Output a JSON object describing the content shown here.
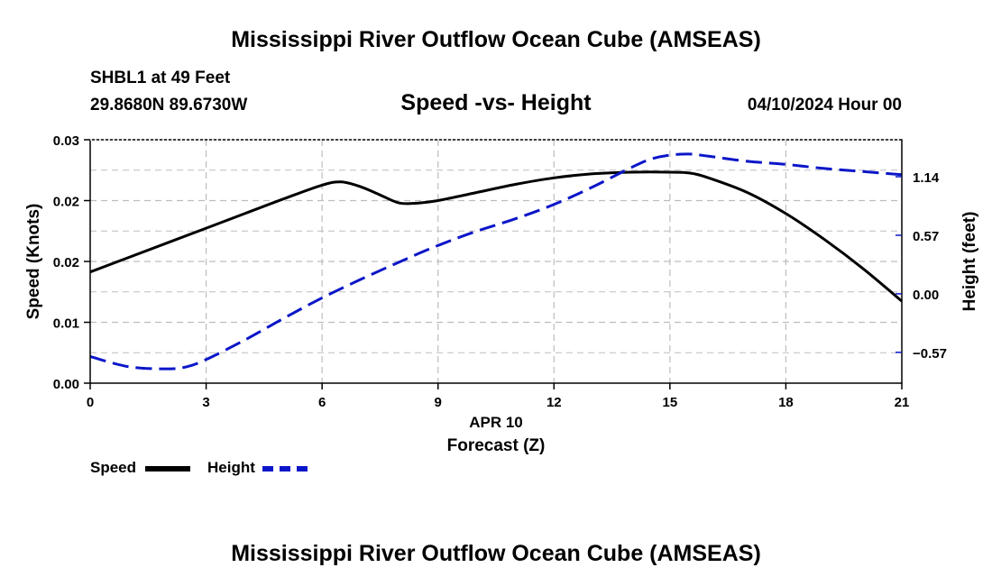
{
  "header": {
    "title": "Mississippi River Outflow Ocean Cube (AMSEAS)",
    "station": "SHBL1 at 49 Feet",
    "coordinates": "29.8680N  89.6730W",
    "subtitle": "Speed -vs- Height",
    "date_hour": "04/10/2024 Hour 00"
  },
  "footer": {
    "title": "Mississippi River Outflow Ocean Cube (AMSEAS)"
  },
  "legend": {
    "speed_label": "Speed",
    "height_label": "Height"
  },
  "colors": {
    "speed": "#000000",
    "height": "#0b16c8",
    "grid": "#bdbdbd"
  },
  "chart_data": {
    "type": "line",
    "title": "Speed -vs- Height",
    "xlabel": "Forecast (Z)",
    "xlabel_date": "APR 10",
    "ylabel": "Speed (Knots)",
    "y2label": "Height (feet)",
    "xlim": [
      0,
      21
    ],
    "ylim": [
      0,
      0.03
    ],
    "y2lim": [
      -0.87,
      1.5
    ],
    "x_ticks": [
      0,
      3,
      6,
      9,
      12,
      15,
      18,
      21
    ],
    "x_tick_labels": [
      "0",
      "3",
      "6",
      "9",
      "12",
      "15",
      "18",
      "21"
    ],
    "y_ticks": [
      0,
      0.0075,
      0.015,
      0.0225,
      0.03
    ],
    "y_tick_labels": [
      "0.00",
      "0.01",
      "0.02",
      "0.02",
      "0.03"
    ],
    "y2_ticks": [
      -0.57,
      0,
      0.57,
      1.14
    ],
    "y2_tick_labels": [
      "−0.57",
      "0.00",
      "0.57",
      "1.14"
    ],
    "grid": true,
    "series": [
      {
        "name": "Speed",
        "axis": "left",
        "style": "solid",
        "x": [
          0,
          1,
          2,
          3,
          4,
          5,
          6,
          6.5,
          7,
          7.5,
          8,
          8.5,
          9,
          10,
          11,
          12,
          13,
          14,
          15,
          15.5,
          16,
          17,
          18,
          19,
          20,
          21
        ],
        "values": [
          0.0137,
          0.0155,
          0.0173,
          0.0191,
          0.0209,
          0.0227,
          0.0244,
          0.0248,
          0.0242,
          0.0232,
          0.0222,
          0.0222,
          0.0225,
          0.0235,
          0.0245,
          0.0253,
          0.0258,
          0.026,
          0.026,
          0.0259,
          0.0253,
          0.0235,
          0.0209,
          0.0177,
          0.0141,
          0.0101
        ]
      },
      {
        "name": "Height",
        "axis": "right",
        "style": "dashed",
        "x": [
          0,
          1,
          2,
          2.5,
          3,
          4,
          5,
          6,
          7,
          8,
          9,
          10,
          11,
          12,
          13,
          14,
          14.5,
          15,
          15.5,
          16,
          17,
          18,
          19,
          20,
          21
        ],
        "values": [
          -0.61,
          -0.71,
          -0.73,
          -0.71,
          -0.64,
          -0.45,
          -0.24,
          -0.04,
          0.14,
          0.31,
          0.47,
          0.61,
          0.73,
          0.87,
          1.04,
          1.23,
          1.31,
          1.35,
          1.36,
          1.34,
          1.29,
          1.26,
          1.22,
          1.19,
          1.16
        ]
      }
    ]
  }
}
